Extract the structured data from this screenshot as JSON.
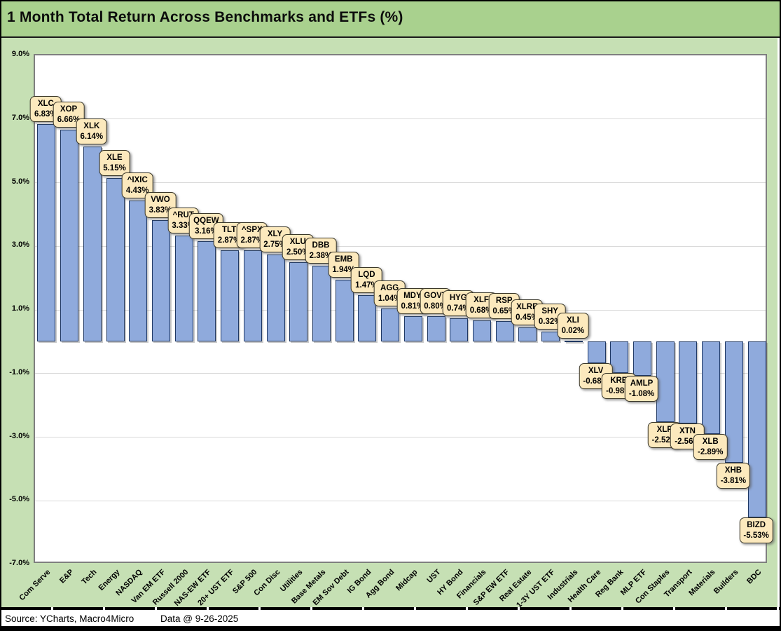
{
  "title": "1 Month Total Return Across Benchmarks and ETFs (%)",
  "footer": {
    "source": "Source: YCharts, Macro4Micro",
    "data_date": "Data @ 9-26-2025"
  },
  "colors": {
    "title_bg": "#A9D18E",
    "canvas_bg": "#C6E0B4",
    "plot_bg": "#FFFFFF",
    "plot_border": "#7F7F7F",
    "gridline": "#D9D9D9",
    "bar_fill": "#8FAADC",
    "bar_border": "#1F3864",
    "callout_fill": "#FCE9BD",
    "callout_border": "#3B382A"
  },
  "chart_data": {
    "type": "bar",
    "title": "1 Month Total Return Across Benchmarks and ETFs (%)",
    "xlabel": "",
    "ylabel": "",
    "ylim": [
      -7,
      9
    ],
    "grid": true,
    "legend": "none",
    "y_ticks": [
      {
        "value": 9,
        "label": "9.0%"
      },
      {
        "value": 7,
        "label": "7.0%"
      },
      {
        "value": 5,
        "label": "5.0%"
      },
      {
        "value": 3,
        "label": "3.0%"
      },
      {
        "value": 1,
        "label": "1.0%"
      },
      {
        "value": -1,
        "label": "-1.0%"
      },
      {
        "value": -3,
        "label": "-3.0%"
      },
      {
        "value": -5,
        "label": "-5.0%"
      },
      {
        "value": -7,
        "label": "-7.0%"
      }
    ],
    "bars": [
      {
        "ticker": "XLC",
        "category": "Com Serve",
        "value": 6.83,
        "label": "6.83%"
      },
      {
        "ticker": "XOP",
        "category": "E&P",
        "value": 6.66,
        "label": "6.66%"
      },
      {
        "ticker": "XLK",
        "category": "Tech",
        "value": 6.14,
        "label": "6.14%"
      },
      {
        "ticker": "XLE",
        "category": "Energy",
        "value": 5.15,
        "label": "5.15%"
      },
      {
        "ticker": "^IXIC",
        "category": "NASDAQ",
        "value": 4.43,
        "label": "4.43%"
      },
      {
        "ticker": "VWO",
        "category": "Van EM ETF",
        "value": 3.83,
        "label": "3.83%"
      },
      {
        "ticker": "^RUT",
        "category": "Russell 2000",
        "value": 3.33,
        "label": "3.33%"
      },
      {
        "ticker": "QQEW",
        "category": "NAS-EW ETF",
        "value": 3.16,
        "label": "3.16%"
      },
      {
        "ticker": "TLT",
        "category": "20+ UST ETF",
        "value": 2.87,
        "label": "2.87%"
      },
      {
        "ticker": "^SPX",
        "category": "S&P 500",
        "value": 2.87,
        "label": "2.87%"
      },
      {
        "ticker": "XLY",
        "category": "Con Disc",
        "value": 2.75,
        "label": "2.75%"
      },
      {
        "ticker": "XLU",
        "category": "Utilities",
        "value": 2.5,
        "label": "2.50%"
      },
      {
        "ticker": "DBB",
        "category": "Base Metals",
        "value": 2.38,
        "label": "2.38%"
      },
      {
        "ticker": "EMB",
        "category": "EM Sov Debt",
        "value": 1.94,
        "label": "1.94%"
      },
      {
        "ticker": "LQD",
        "category": "IG Bond",
        "value": 1.47,
        "label": "1.47%"
      },
      {
        "ticker": "AGG",
        "category": "Agg Bond",
        "value": 1.04,
        "label": "1.04%"
      },
      {
        "ticker": "MDY",
        "category": "Midcap",
        "value": 0.81,
        "label": "0.81%"
      },
      {
        "ticker": "GOVT",
        "category": "UST",
        "value": 0.8,
        "label": "0.80%"
      },
      {
        "ticker": "HYG",
        "category": "HY Bond",
        "value": 0.74,
        "label": "0.74%"
      },
      {
        "ticker": "XLF",
        "category": "Financials",
        "value": 0.68,
        "label": "0.68%"
      },
      {
        "ticker": "RSP",
        "category": "S&P EW ETF",
        "value": 0.65,
        "label": "0.65%"
      },
      {
        "ticker": "XLRE",
        "category": "Real Estate",
        "value": 0.45,
        "label": "0.45%"
      },
      {
        "ticker": "SHY",
        "category": "1-3Y UST ETF",
        "value": 0.32,
        "label": "0.32%"
      },
      {
        "ticker": "XLI",
        "category": "Industrials",
        "value": 0.02,
        "label": "0.02%"
      },
      {
        "ticker": "XLV",
        "category": "Health Care",
        "value": -0.68,
        "label": "-0.68%"
      },
      {
        "ticker": "KRE",
        "category": "Reg Bank",
        "value": -0.98,
        "label": "-0.98%"
      },
      {
        "ticker": "AMLP",
        "category": "MLP ETF",
        "value": -1.08,
        "label": "-1.08%"
      },
      {
        "ticker": "XLP",
        "category": "Con Staples",
        "value": -2.52,
        "label": "-2.52%"
      },
      {
        "ticker": "XTN",
        "category": "Transport",
        "value": -2.56,
        "label": "-2.56%"
      },
      {
        "ticker": "XLB",
        "category": "Materials",
        "value": -2.89,
        "label": "-2.89%"
      },
      {
        "ticker": "XHB",
        "category": "Builders",
        "value": -3.81,
        "label": "-3.81%"
      },
      {
        "ticker": "BIZD",
        "category": "BDC",
        "value": -5.53,
        "label": "-5.53%"
      }
    ]
  }
}
